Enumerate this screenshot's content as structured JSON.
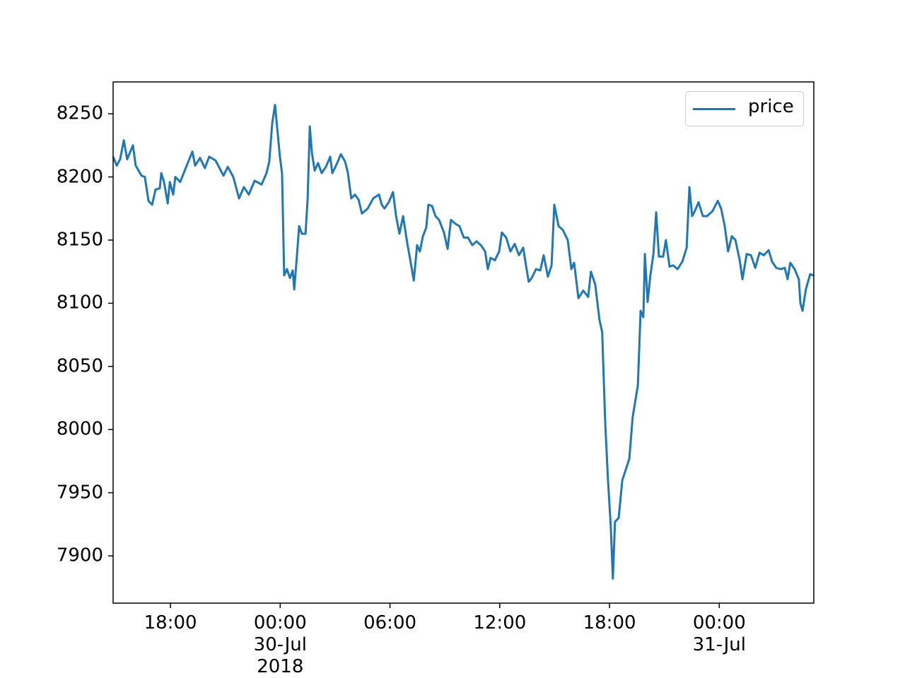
{
  "chart_data": {
    "type": "line",
    "x": [
      "2018-07-29 14:52",
      "2018-07-29 15:04",
      "2018-07-29 15:15",
      "2018-07-29 15:27",
      "2018-07-29 15:38",
      "2018-07-29 15:57",
      "2018-07-29 16:06",
      "2018-07-29 16:25",
      "2018-07-29 16:36",
      "2018-07-29 16:48",
      "2018-07-29 17:00",
      "2018-07-29 17:11",
      "2018-07-29 17:25",
      "2018-07-29 17:30",
      "2018-07-29 17:39",
      "2018-07-29 17:51",
      "2018-07-29 17:58",
      "2018-07-29 18:09",
      "2018-07-29 18:16",
      "2018-07-29 18:32",
      "2018-07-29 18:55",
      "2018-07-29 19:12",
      "2018-07-29 19:21",
      "2018-07-29 19:37",
      "2018-07-29 19:53",
      "2018-07-29 20:07",
      "2018-07-29 20:28",
      "2018-07-29 20:54",
      "2018-07-29 21:08",
      "2018-07-29 21:26",
      "2018-07-29 21:45",
      "2018-07-29 22:01",
      "2018-07-29 22:17",
      "2018-07-29 22:36",
      "2018-07-29 22:59",
      "2018-07-29 23:15",
      "2018-07-29 23:24",
      "2018-07-29 23:34",
      "2018-07-29 23:43",
      "2018-07-29 23:50",
      "2018-07-29 23:59",
      "2018-07-30 00:06",
      "2018-07-30 00:13",
      "2018-07-30 00:22",
      "2018-07-30 00:32",
      "2018-07-30 00:41",
      "2018-07-30 00:46",
      "2018-07-30 00:55",
      "2018-07-30 01:02",
      "2018-07-30 01:11",
      "2018-07-30 01:23",
      "2018-07-30 01:30",
      "2018-07-30 01:37",
      "2018-07-30 01:44",
      "2018-07-30 01:53",
      "2018-07-30 02:04",
      "2018-07-30 02:16",
      "2018-07-30 02:30",
      "2018-07-30 02:44",
      "2018-07-30 02:51",
      "2018-07-30 03:07",
      "2018-07-30 03:19",
      "2018-07-30 03:33",
      "2018-07-30 03:42",
      "2018-07-30 03:53",
      "2018-07-30 04:05",
      "2018-07-30 04:17",
      "2018-07-30 04:28",
      "2018-07-30 04:47",
      "2018-07-30 05:05",
      "2018-07-30 05:24",
      "2018-07-30 05:33",
      "2018-07-30 05:42",
      "2018-07-30 05:56",
      "2018-07-30 06:10",
      "2018-07-30 06:20",
      "2018-07-30 06:31",
      "2018-07-30 06:43",
      "2018-07-30 06:57",
      "2018-07-30 07:06",
      "2018-07-30 07:18",
      "2018-07-30 07:29",
      "2018-07-30 07:38",
      "2018-07-30 07:48",
      "2018-07-30 07:59",
      "2018-07-30 08:06",
      "2018-07-30 08:18",
      "2018-07-30 08:29",
      "2018-07-30 08:41",
      "2018-07-30 08:57",
      "2018-07-30 09:09",
      "2018-07-30 09:20",
      "2018-07-30 09:34",
      "2018-07-30 09:48",
      "2018-07-30 10:02",
      "2018-07-30 10:16",
      "2018-07-30 10:30",
      "2018-07-30 10:44",
      "2018-07-30 10:58",
      "2018-07-30 11:12",
      "2018-07-30 11:21",
      "2018-07-30 11:30",
      "2018-07-30 11:44",
      "2018-07-30 11:58",
      "2018-07-30 12:07",
      "2018-07-30 12:21",
      "2018-07-30 12:35",
      "2018-07-30 12:49",
      "2018-07-30 13:03",
      "2018-07-30 13:17",
      "2018-07-30 13:26",
      "2018-07-30 13:35",
      "2018-07-30 13:45",
      "2018-07-30 13:59",
      "2018-07-30 14:13",
      "2018-07-30 14:24",
      "2018-07-30 14:38",
      "2018-07-30 14:50",
      "2018-07-30 14:59",
      "2018-07-30 15:13",
      "2018-07-30 15:27",
      "2018-07-30 15:43",
      "2018-07-30 15:55",
      "2018-07-30 16:04",
      "2018-07-30 16:18",
      "2018-07-30 16:34",
      "2018-07-30 16:50",
      "2018-07-30 16:59",
      "2018-07-30 17:13",
      "2018-07-30 17:27",
      "2018-07-30 17:36",
      "2018-07-30 17:46",
      "2018-07-30 17:55",
      "2018-07-30 18:04",
      "2018-07-30 18:11",
      "2018-07-30 18:18",
      "2018-07-30 18:30",
      "2018-07-30 18:42",
      "2018-07-30 18:53",
      "2018-07-30 19:05",
      "2018-07-30 19:16",
      "2018-07-30 19:33",
      "2018-07-30 19:42",
      "2018-07-30 19:51",
      "2018-07-30 19:56",
      "2018-07-30 20:05",
      "2018-07-30 20:14",
      "2018-07-30 20:24",
      "2018-07-30 20:33",
      "2018-07-30 20:42",
      "2018-07-30 20:56",
      "2018-07-30 21:05",
      "2018-07-30 21:17",
      "2018-07-30 21:29",
      "2018-07-30 21:43",
      "2018-07-30 21:59",
      "2018-07-30 22:13",
      "2018-07-30 22:22",
      "2018-07-30 22:31",
      "2018-07-30 22:40",
      "2018-07-30 22:52",
      "2018-07-30 23:06",
      "2018-07-30 23:20",
      "2018-07-30 23:38",
      "2018-07-30 23:55",
      "2018-07-31 00:06",
      "2018-07-31 00:18",
      "2018-07-31 00:29",
      "2018-07-31 00:41",
      "2018-07-31 00:53",
      "2018-07-31 01:07",
      "2018-07-31 01:16",
      "2018-07-31 01:30",
      "2018-07-31 01:44",
      "2018-07-31 01:58",
      "2018-07-31 02:12",
      "2018-07-31 02:26",
      "2018-07-31 02:42",
      "2018-07-31 02:53",
      "2018-07-31 03:07",
      "2018-07-31 03:21",
      "2018-07-31 03:35",
      "2018-07-31 03:44",
      "2018-07-31 03:53",
      "2018-07-31 04:07",
      "2018-07-31 04:21",
      "2018-07-31 04:26",
      "2018-07-31 04:33",
      "2018-07-31 04:44",
      "2018-07-31 04:58",
      "2018-07-31 05:10"
    ],
    "series": [
      {
        "name": "price",
        "color": "#1f77b4",
        "values": [
          8216,
          8209,
          8214,
          8229,
          8214,
          8225,
          8209,
          8201,
          8200,
          8181,
          8178,
          8190,
          8191,
          8203,
          8196,
          8179,
          8196,
          8186,
          8200,
          8196,
          8210,
          8220,
          8209,
          8215,
          8207,
          8216,
          8213,
          8201,
          8208,
          8200,
          8183,
          8192,
          8186,
          8197,
          8194,
          8203,
          8212,
          8243,
          8257,
          8239,
          8216,
          8203,
          8122,
          8127,
          8120,
          8126,
          8111,
          8138,
          8161,
          8155,
          8155,
          8183,
          8240,
          8219,
          8205,
          8211,
          8203,
          8208,
          8216,
          8203,
          8211,
          8218,
          8212,
          8203,
          8183,
          8186,
          8182,
          8171,
          8175,
          8183,
          8186,
          8178,
          8175,
          8180,
          8188,
          8169,
          8155,
          8169,
          8147,
          8135,
          8118,
          8146,
          8141,
          8153,
          8160,
          8178,
          8177,
          8169,
          8166,
          8156,
          8143,
          8166,
          8163,
          8161,
          8152,
          8152,
          8146,
          8149,
          8146,
          8141,
          8127,
          8136,
          8134,
          8141,
          8156,
          8152,
          8141,
          8147,
          8138,
          8144,
          8130,
          8117,
          8120,
          8127,
          8126,
          8138,
          8121,
          8130,
          8178,
          8161,
          8158,
          8150,
          8127,
          8132,
          8104,
          8110,
          8105,
          8125,
          8115,
          8087,
          8077,
          8005,
          7960,
          7924,
          7882,
          7927,
          7930,
          7960,
          7968,
          7977,
          8010,
          8035,
          8094,
          8089,
          8139,
          8101,
          8122,
          8139,
          8172,
          8137,
          8137,
          8150,
          8129,
          8130,
          8127,
          8133,
          8144,
          8192,
          8169,
          8173,
          8180,
          8169,
          8169,
          8173,
          8181,
          8175,
          8161,
          8141,
          8153,
          8150,
          8134,
          8119,
          8139,
          8138,
          8128,
          8140,
          8138,
          8142,
          8133,
          8128,
          8127,
          8128,
          8119,
          8132,
          8127,
          8119,
          8100,
          8094,
          8111,
          8123,
          8122
        ]
      }
    ],
    "xlim": [
      "2018-07-29 14:52",
      "2018-07-31 05:10"
    ],
    "xticks": [
      {
        "value": "2018-07-29 18:00",
        "label": "18:00"
      },
      {
        "value": "2018-07-30 00:00",
        "label": "00:00\n30-Jul\n2018"
      },
      {
        "value": "2018-07-30 06:00",
        "label": "06:00"
      },
      {
        "value": "2018-07-30 12:00",
        "label": "12:00"
      },
      {
        "value": "2018-07-30 18:00",
        "label": "18:00"
      },
      {
        "value": "2018-07-31 00:00",
        "label": "00:00\n31-Jul"
      }
    ],
    "ylim": [
      7862.6,
      8275.2
    ],
    "yticks": [
      7900,
      7950,
      8000,
      8050,
      8100,
      8150,
      8200,
      8250
    ],
    "legend": "upper right"
  }
}
